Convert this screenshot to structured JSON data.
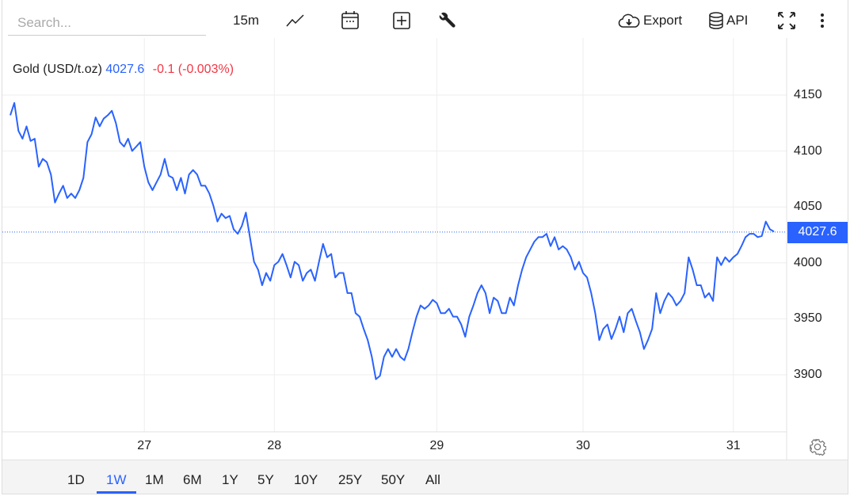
{
  "toolbar": {
    "search_placeholder": "Search...",
    "interval": "15m",
    "export_label": "Export",
    "api_label": "API"
  },
  "legend": {
    "name": "Gold (USD/t.oz)",
    "value": "4027.6",
    "change": "-0.1 (-0.003%)"
  },
  "ranges": [
    "1D",
    "1W",
    "1M",
    "6M",
    "1Y",
    "5Y",
    "10Y",
    "25Y",
    "50Y",
    "All"
  ],
  "active_range": "1W",
  "colors": {
    "line": "#2962ff",
    "down": "#f23645",
    "accent": "#2962ff"
  },
  "chart_data": {
    "type": "line",
    "title": "Gold (USD/t.oz)",
    "last_value": 4027.6,
    "last_label": "4027.6",
    "ylim": [
      3850,
      4185
    ],
    "yticks": [
      3900,
      3950,
      4000,
      4050,
      4100,
      4150
    ],
    "ytick_labels": [
      "3900",
      "3950",
      "4000",
      "4050",
      "4100",
      "4150"
    ],
    "xticks": [
      {
        "index": 33,
        "label": "27"
      },
      {
        "index": 65,
        "label": "28"
      },
      {
        "index": 105,
        "label": "29"
      },
      {
        "index": 141,
        "label": "30"
      },
      {
        "index": 178,
        "label": "31"
      }
    ],
    "values": [
      4132,
      4143,
      4118,
      4111,
      4122,
      4109,
      4111,
      4086,
      4093,
      4090,
      4079,
      4054,
      4062,
      4069,
      4058,
      4062,
      4058,
      4065,
      4076,
      4108,
      4115,
      4130,
      4122,
      4129,
      4132,
      4136,
      4125,
      4108,
      4104,
      4111,
      4100,
      4104,
      4108,
      4086,
      4072,
      4065,
      4072,
      4079,
      4093,
      4078,
      4076,
      4065,
      4076,
      4062,
      4079,
      4083,
      4079,
      4069,
      4069,
      4062,
      4051,
      4037,
      4044,
      4040,
      4042,
      4030,
      4026,
      4033,
      4045,
      4023,
      4001,
      3994,
      3980,
      3991,
      3984,
      3998,
      4001,
      4008,
      3998,
      3987,
      4001,
      3998,
      3984,
      3991,
      3994,
      3984,
      4001,
      4017,
      4005,
      4008,
      3987,
      3991,
      3991,
      3973,
      3973,
      3955,
      3952,
      3941,
      3931,
      3916,
      3896,
      3899,
      3916,
      3923,
      3916,
      3923,
      3916,
      3913,
      3923,
      3938,
      3952,
      3962,
      3959,
      3962,
      3967,
      3964,
      3955,
      3955,
      3959,
      3952,
      3952,
      3945,
      3934,
      3952,
      3962,
      3973,
      3980,
      3973,
      3955,
      3969,
      3966,
      3955,
      3955,
      3969,
      3962,
      3980,
      3994,
      4005,
      4012,
      4019,
      4023,
      4023,
      4026,
      4015,
      4023,
      4012,
      4015,
      4012,
      4005,
      3994,
      4001,
      3991,
      3987,
      3973,
      3955,
      3931,
      3941,
      3945,
      3932,
      3941,
      3952,
      3938,
      3955,
      3959,
      3948,
      3938,
      3923,
      3931,
      3941,
      3973,
      3955,
      3966,
      3973,
      3969,
      3962,
      3966,
      3973,
      4005,
      3994,
      3980,
      3980,
      3969,
      3973,
      3966,
      4005,
      3998,
      4005,
      4001,
      4005,
      4008,
      4015,
      4023,
      4026,
      4026,
      4023,
      4024,
      4037,
      4030,
      4028
    ]
  }
}
